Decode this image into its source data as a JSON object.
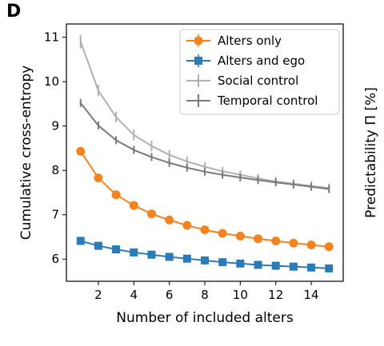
{
  "panel_letter": "D",
  "colors": {
    "alters_only": "#f58220",
    "alters_and_ego": "#2b7bb9",
    "social_control": "#b0b0b0",
    "temporal_control": "#7a7a7a"
  },
  "chart_data": {
    "type": "line",
    "xlabel": "Number of included alters",
    "ylabel": "Cumulative cross-entropy",
    "ylabel_right": "Predictability Π [%]",
    "xlim": [
      0.2,
      15.8
    ],
    "ylim": [
      5.5,
      11.3
    ],
    "x_ticks": [
      2,
      4,
      6,
      8,
      10,
      12,
      14
    ],
    "y_ticks": [
      6,
      7,
      8,
      9,
      10,
      11
    ],
    "legend_position": "top-right",
    "grid": false,
    "x": [
      1,
      2,
      3,
      4,
      5,
      6,
      7,
      8,
      9,
      10,
      11,
      12,
      13,
      14,
      15
    ],
    "series": [
      {
        "name": "Alters only",
        "marker": "circle",
        "color_key": "alters_only",
        "values": [
          8.43,
          7.83,
          7.45,
          7.21,
          7.02,
          6.88,
          6.76,
          6.66,
          6.58,
          6.52,
          6.46,
          6.41,
          6.36,
          6.32,
          6.28
        ],
        "errors": [
          0.03,
          0.03,
          0.03,
          0.03,
          0.03,
          0.03,
          0.03,
          0.03,
          0.03,
          0.03,
          0.03,
          0.03,
          0.03,
          0.03,
          0.03
        ]
      },
      {
        "name": "Alters and ego",
        "marker": "square",
        "color_key": "alters_and_ego",
        "values": [
          6.41,
          6.3,
          6.22,
          6.15,
          6.1,
          6.05,
          6.01,
          5.97,
          5.93,
          5.9,
          5.87,
          5.85,
          5.83,
          5.81,
          5.79
        ],
        "errors": [
          0.02,
          0.02,
          0.02,
          0.02,
          0.02,
          0.02,
          0.02,
          0.02,
          0.02,
          0.02,
          0.02,
          0.02,
          0.02,
          0.02,
          0.02
        ]
      },
      {
        "name": "Social control",
        "marker": "errorbar",
        "color_key": "social_control",
        "values": [
          10.9,
          9.8,
          9.2,
          8.8,
          8.55,
          8.35,
          8.2,
          8.08,
          7.98,
          7.9,
          7.82,
          7.75,
          7.7,
          7.65,
          7.6
        ],
        "errors": [
          0.15,
          0.13,
          0.12,
          0.12,
          0.12,
          0.11,
          0.11,
          0.11,
          0.1,
          0.1,
          0.1,
          0.1,
          0.1,
          0.1,
          0.1
        ]
      },
      {
        "name": "Temporal control",
        "marker": "errorbar",
        "color_key": "temporal_control",
        "values": [
          9.52,
          9.01,
          8.68,
          8.46,
          8.3,
          8.17,
          8.06,
          7.97,
          7.9,
          7.84,
          7.78,
          7.73,
          7.68,
          7.63,
          7.58
        ],
        "errors": [
          0.09,
          0.09,
          0.09,
          0.09,
          0.09,
          0.09,
          0.09,
          0.09,
          0.09,
          0.09,
          0.09,
          0.09,
          0.09,
          0.09,
          0.09
        ]
      }
    ]
  }
}
